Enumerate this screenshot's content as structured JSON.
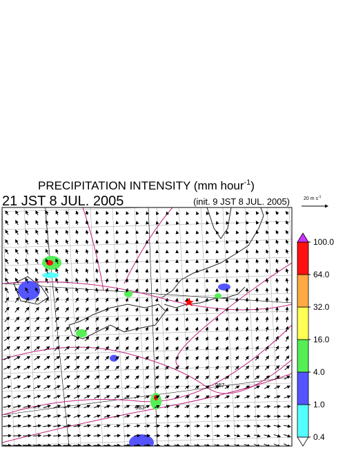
{
  "header": {
    "title": "PRECIPITATION INTENSITY (mm hour",
    "title_sup": "-1",
    "title_end": ")",
    "valid_time": "21 JST 8 JUL. 2005",
    "init": "(init. 9 JST 8 JUL. 2005)"
  },
  "wind_legend": {
    "label": "20 m s",
    "label_sup": "-1"
  },
  "colorbar": {
    "levels": [
      {
        "value": 0.4,
        "label": "0.4"
      },
      {
        "value": 1,
        "label": "1.0"
      },
      {
        "value": 4,
        "label": "4.0"
      },
      {
        "value": 16,
        "label": "16.0"
      },
      {
        "value": 32,
        "label": "32.0"
      },
      {
        "value": 64,
        "label": "64.0"
      },
      {
        "value": 100,
        "label": "100.0"
      }
    ],
    "colors": [
      "#ffffff",
      "#55ffff",
      "#5555ff",
      "#55ee55",
      "#ffff55",
      "#ffaa44",
      "#ff1111",
      "#cc33ff"
    ]
  },
  "map": {
    "isobar_labels": [
      "987",
      "983"
    ]
  }
}
